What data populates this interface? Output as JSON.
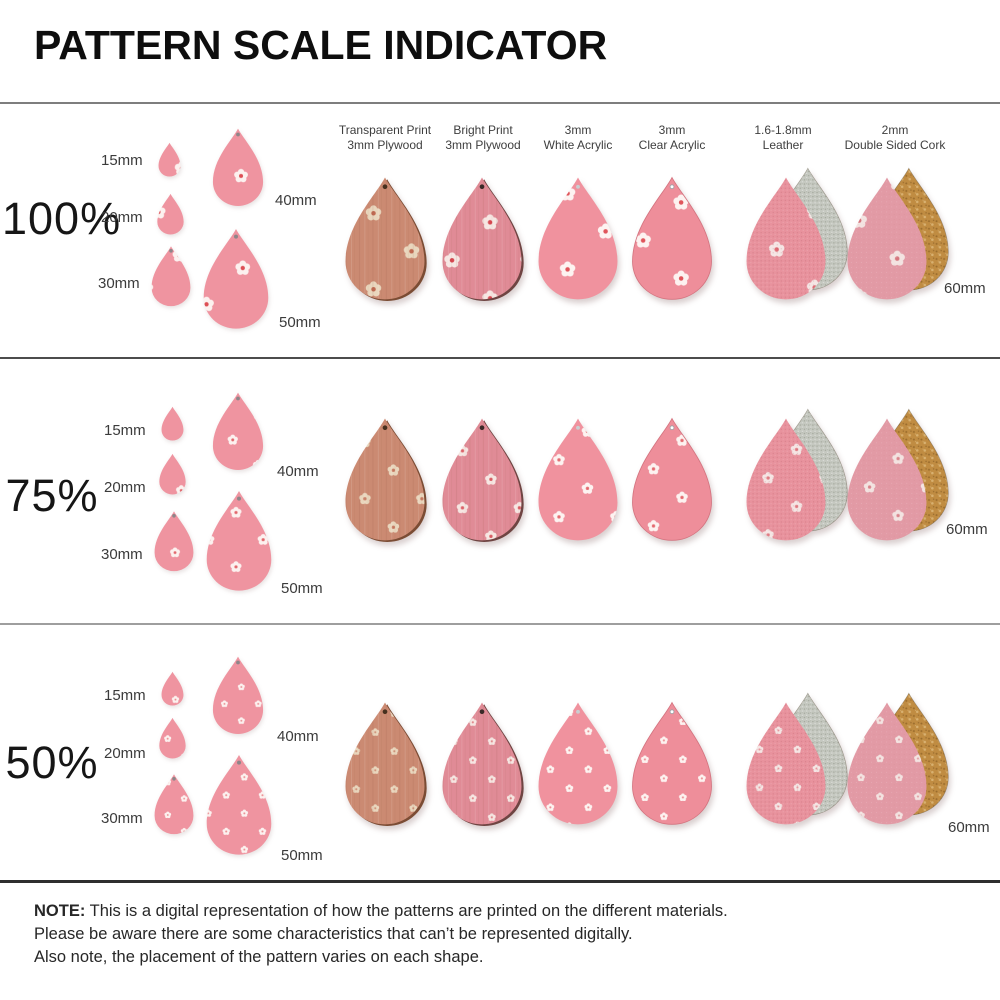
{
  "title": "PATTERN SCALE INDICATOR",
  "header_columns": [
    {
      "line1": "Transparent Print",
      "line2": "3mm Plywood",
      "material_key": "plywood_transparent"
    },
    {
      "line1": "Bright Print",
      "line2": "3mm Plywood",
      "material_key": "plywood_bright"
    },
    {
      "line1": "3mm",
      "line2": "White Acrylic",
      "material_key": "acrylic_white"
    },
    {
      "line1": "3mm",
      "line2": "Clear Acrylic",
      "material_key": "acrylic_clear"
    },
    {
      "line1": "1.6-1.8mm",
      "line2": "Leather",
      "material_key": "leather"
    },
    {
      "line1": "2mm",
      "line2": "Double Sided Cork",
      "material_key": "cork"
    }
  ],
  "rows": [
    {
      "scale_label": "100%",
      "pattern_scale": 1.0,
      "size_labels": {
        "s15": "15mm",
        "s20": "20mm",
        "s30": "30mm",
        "s40": "40mm",
        "s50": "50mm",
        "s60": "60mm"
      }
    },
    {
      "scale_label": "75%",
      "pattern_scale": 0.75,
      "size_labels": {
        "s15": "15mm",
        "s20": "20mm",
        "s30": "30mm",
        "s40": "40mm",
        "s50": "50mm",
        "s60": "60mm"
      }
    },
    {
      "scale_label": "50%",
      "pattern_scale": 0.5,
      "size_labels": {
        "s15": "15mm",
        "s20": "20mm",
        "s30": "30mm",
        "s40": "40mm",
        "s50": "50mm",
        "s60": "60mm"
      }
    }
  ],
  "note": {
    "label": "NOTE:",
    "line1": "This is a digital representation of how the patterns are printed on the different materials.",
    "line2": "Please be aware there are some characteristics that can’t be represented digitally.",
    "line3": "Also note, the placement of the pattern varies on each shape."
  },
  "materials": {
    "sample": {
      "base": "#ef94a0",
      "petal": "#fcf1ef",
      "center": "#dd4f55"
    },
    "plywood_transparent": {
      "base": "#cb8a72",
      "petal": "#e9d6bd",
      "center": "#c06a52",
      "edge": "#7b4c34",
      "hole": "#46301f"
    },
    "plywood_bright": {
      "base": "#e08b96",
      "petal": "#f6e6e2",
      "center": "#d6454e",
      "edge": "#6f4442",
      "hole": "#3a2a28"
    },
    "acrylic_white": {
      "base": "#f0929e",
      "petal": "#fdf3f1",
      "center": "#e0555b",
      "hole": "#c9ced1"
    },
    "acrylic_clear": {
      "base": "#ee8e9a",
      "petal": "#fdf2f0",
      "center": "#e0555b",
      "rim": "#d4737f",
      "hole": "#ffffff",
      "hole_ring": "#9aa1a6"
    },
    "leather": {
      "base": "#e8929d",
      "petal": "#f5e5e4",
      "center": "#df6d76",
      "back": "#c5c8c0"
    },
    "cork": {
      "base": "#e29aa5",
      "petal": "#f3e3e1",
      "center": "#d6767e",
      "back": "#c08c42"
    }
  }
}
